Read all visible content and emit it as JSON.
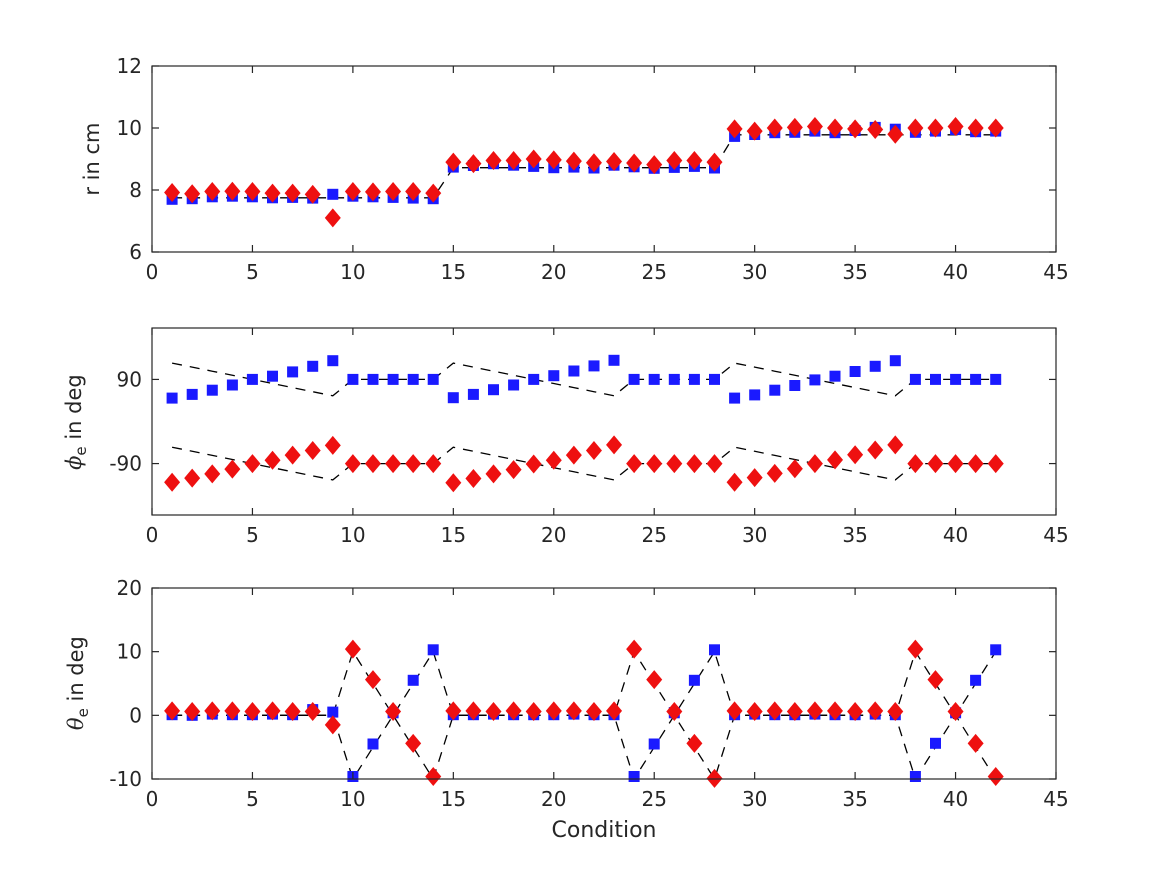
{
  "figure": {
    "background": "#ffffff",
    "axis_color": "#262626",
    "dash_color": "#000000",
    "blue_marker_color": "#1a1aff",
    "red_marker_color": "#ee1010"
  },
  "chart_data": [
    {
      "type": "scatter",
      "title": "",
      "ylabel": {
        "sym": "r",
        "sub": "",
        "rest": " in cm"
      },
      "xlabel": "",
      "xlim": [
        0,
        45
      ],
      "ylim": [
        6,
        12
      ],
      "xticks": [
        0,
        5,
        10,
        15,
        20,
        25,
        30,
        35,
        40,
        45
      ],
      "yticks": [
        6,
        8,
        10,
        12
      ],
      "grid": false,
      "legend": null,
      "x": [
        1,
        2,
        3,
        4,
        5,
        6,
        7,
        8,
        9,
        10,
        11,
        12,
        13,
        14,
        15,
        16,
        17,
        18,
        19,
        20,
        21,
        22,
        23,
        24,
        25,
        26,
        27,
        28,
        29,
        30,
        31,
        32,
        33,
        34,
        35,
        36,
        37,
        38,
        39,
        40,
        41,
        42
      ],
      "series": [
        {
          "name": "reference-dashed",
          "marker": "none",
          "line": "dashed",
          "color": "#000000",
          "values": [
            7.75,
            7.75,
            7.75,
            7.75,
            7.75,
            7.75,
            7.75,
            7.75,
            7.75,
            7.75,
            7.75,
            7.75,
            7.75,
            7.75,
            8.72,
            8.72,
            8.72,
            8.72,
            8.72,
            8.72,
            8.72,
            8.72,
            8.72,
            8.72,
            8.72,
            8.72,
            8.72,
            8.72,
            9.78,
            9.78,
            9.78,
            9.78,
            9.78,
            9.78,
            9.78,
            9.78,
            9.78,
            9.78,
            9.78,
            9.78,
            9.78,
            9.78
          ]
        },
        {
          "name": "blue-squares",
          "marker": "square",
          "line": "none",
          "color": "#1a1aff",
          "values": [
            7.7,
            7.72,
            7.78,
            7.8,
            7.78,
            7.75,
            7.76,
            7.74,
            7.86,
            7.8,
            7.78,
            7.76,
            7.74,
            7.72,
            8.74,
            8.79,
            8.85,
            8.8,
            8.76,
            8.72,
            8.74,
            8.71,
            8.8,
            8.75,
            8.7,
            8.73,
            8.76,
            8.71,
            9.73,
            9.79,
            9.85,
            9.86,
            9.9,
            9.85,
            9.92,
            10.02,
            9.96,
            9.86,
            9.9,
            9.95,
            9.88,
            9.9
          ]
        },
        {
          "name": "red-diamonds",
          "marker": "diamond",
          "line": "none",
          "color": "#ee1010",
          "values": [
            7.92,
            7.88,
            7.95,
            7.96,
            7.95,
            7.9,
            7.9,
            7.86,
            7.1,
            7.95,
            7.94,
            7.95,
            7.95,
            7.9,
            8.9,
            8.85,
            8.95,
            8.95,
            9.0,
            8.97,
            8.93,
            8.88,
            8.92,
            8.87,
            8.82,
            8.95,
            8.95,
            8.9,
            9.97,
            9.9,
            10.0,
            10.02,
            10.05,
            10.0,
            9.97,
            9.95,
            9.8,
            10.0,
            10.0,
            10.05,
            10.0,
            10.0
          ]
        }
      ]
    },
    {
      "type": "scatter",
      "title": "",
      "ylabel": {
        "sym": "ϕ",
        "sub": "e",
        "rest": " in deg"
      },
      "xlabel": "",
      "xlim": [
        0,
        45
      ],
      "ylim": [
        -200,
        200
      ],
      "xticks": [
        0,
        5,
        10,
        15,
        20,
        25,
        30,
        35,
        40,
        45
      ],
      "yticks": [
        -90,
        90
      ],
      "grid": false,
      "legend": null,
      "x": [
        1,
        2,
        3,
        4,
        5,
        6,
        7,
        8,
        9,
        10,
        11,
        12,
        13,
        14,
        15,
        16,
        17,
        18,
        19,
        20,
        21,
        22,
        23,
        24,
        25,
        26,
        27,
        28,
        29,
        30,
        31,
        32,
        33,
        34,
        35,
        36,
        37,
        38,
        39,
        40,
        41,
        42
      ],
      "series": [
        {
          "name": "upper-reference-dashed",
          "marker": "none",
          "line": "dashed",
          "color": "#000000",
          "values": [
            125,
            116.3,
            107.5,
            98.8,
            90,
            81.3,
            72.5,
            63.8,
            55,
            90,
            90,
            90,
            90,
            90,
            125,
            116.3,
            107.5,
            98.8,
            90,
            81.3,
            72.5,
            63.8,
            55,
            90,
            90,
            90,
            90,
            90,
            125,
            116.3,
            107.5,
            98.8,
            90,
            81.3,
            72.5,
            63.8,
            55,
            90,
            90,
            90,
            90,
            90
          ]
        },
        {
          "name": "lower-reference-dashed",
          "marker": "none",
          "line": "dashed",
          "color": "#000000",
          "values": [
            -55,
            -63.8,
            -72.5,
            -81.3,
            -90,
            -98.8,
            -107.5,
            -116.3,
            -125,
            -90,
            -90,
            -90,
            -90,
            -90,
            -55,
            -63.8,
            -72.5,
            -81.3,
            -90,
            -98.8,
            -107.5,
            -116.3,
            -125,
            -90,
            -90,
            -90,
            -90,
            -90,
            -55,
            -63.8,
            -72.5,
            -81.3,
            -90,
            -98.8,
            -107.5,
            -116.3,
            -125,
            -90,
            -90,
            -90,
            -90,
            -90
          ]
        },
        {
          "name": "blue-squares",
          "marker": "square",
          "line": "none",
          "color": "#1a1aff",
          "values": [
            50,
            58,
            67,
            78,
            90,
            97,
            106,
            118,
            130,
            90,
            90,
            90,
            90,
            90,
            51,
            58,
            68,
            78,
            90,
            98,
            108,
            119,
            131,
            90,
            90,
            90,
            90,
            90,
            50,
            57,
            67,
            77,
            89,
            97,
            107,
            118,
            130,
            90,
            90,
            90,
            90,
            90
          ]
        },
        {
          "name": "red-diamonds",
          "marker": "diamond",
          "line": "none",
          "color": "#ee1010",
          "values": [
            -130,
            -121,
            -112,
            -102,
            -90,
            -83,
            -72,
            -62,
            -51,
            -90,
            -90,
            -90,
            -90,
            -90,
            -131,
            -122,
            -112,
            -103,
            -91,
            -83,
            -72,
            -62,
            -50,
            -90,
            -90,
            -90,
            -90,
            -90,
            -130,
            -120,
            -111,
            -101,
            -90,
            -82,
            -71,
            -61,
            -50,
            -90,
            -90,
            -90,
            -90,
            -90
          ]
        }
      ]
    },
    {
      "type": "scatter",
      "title": "",
      "ylabel": {
        "sym": "θ",
        "sub": "e",
        "rest": " in deg"
      },
      "xlabel": "Condition",
      "xlim": [
        0,
        45
      ],
      "ylim": [
        -10,
        20
      ],
      "xticks": [
        0,
        5,
        10,
        15,
        20,
        25,
        30,
        35,
        40,
        45
      ],
      "yticks": [
        -10,
        0,
        10,
        20
      ],
      "grid": false,
      "legend": null,
      "x": [
        1,
        2,
        3,
        4,
        5,
        6,
        7,
        8,
        9,
        10,
        11,
        12,
        13,
        14,
        15,
        16,
        17,
        18,
        19,
        20,
        21,
        22,
        23,
        24,
        25,
        26,
        27,
        28,
        29,
        30,
        31,
        32,
        33,
        34,
        35,
        36,
        37,
        38,
        39,
        40,
        41,
        42
      ],
      "series": [
        {
          "name": "ascending-reference-dashed",
          "marker": "none",
          "line": "dashed",
          "color": "#000000",
          "values": [
            0,
            0,
            0,
            0,
            0,
            0,
            0,
            0,
            0,
            -10,
            -5,
            0,
            5,
            10,
            0,
            0,
            0,
            0,
            0,
            0,
            0,
            0,
            0,
            -10,
            -5,
            0,
            5,
            10,
            0,
            0,
            0,
            0,
            0,
            0,
            0,
            0,
            0,
            -10,
            -5,
            0,
            5,
            10
          ]
        },
        {
          "name": "descending-reference-dashed",
          "marker": "none",
          "line": "dashed",
          "color": "#000000",
          "values": [
            0,
            0,
            0,
            0,
            0,
            0,
            0,
            0,
            0,
            10,
            5,
            0,
            -5,
            -10,
            0,
            0,
            0,
            0,
            0,
            0,
            0,
            0,
            0,
            10,
            5,
            0,
            -5,
            -10,
            0,
            0,
            0,
            0,
            0,
            0,
            0,
            0,
            0,
            10,
            5,
            0,
            -5,
            -10
          ]
        },
        {
          "name": "blue-squares",
          "marker": "square",
          "line": "none",
          "color": "#1a1aff",
          "values": [
            0.1,
            0,
            0.2,
            0.1,
            0.1,
            0.2,
            0.1,
            0.9,
            0.5,
            -9.6,
            -4.5,
            0.4,
            5.5,
            10.3,
            0.1,
            0.1,
            0.2,
            0.1,
            0.1,
            0.1,
            0.2,
            0.1,
            0.1,
            -9.6,
            -4.5,
            0.4,
            5.5,
            10.3,
            0.1,
            0.2,
            0.1,
            0.1,
            0.2,
            0.1,
            0.1,
            0.2,
            0.1,
            -9.6,
            -4.4,
            0.4,
            5.5,
            10.3
          ]
        },
        {
          "name": "red-diamonds",
          "marker": "diamond",
          "line": "none",
          "color": "#ee1010",
          "values": [
            0.7,
            0.6,
            0.7,
            0.7,
            0.6,
            0.7,
            0.6,
            0.6,
            -1.5,
            10.4,
            5.6,
            0.6,
            -4.4,
            -9.6,
            0.7,
            0.7,
            0.6,
            0.7,
            0.6,
            0.7,
            0.7,
            0.6,
            0.7,
            10.4,
            5.6,
            0.6,
            -4.4,
            -9.9,
            0.7,
            0.6,
            0.7,
            0.6,
            0.7,
            0.7,
            0.6,
            0.7,
            0.6,
            10.4,
            5.6,
            0.6,
            -4.4,
            -9.6
          ]
        }
      ]
    }
  ]
}
